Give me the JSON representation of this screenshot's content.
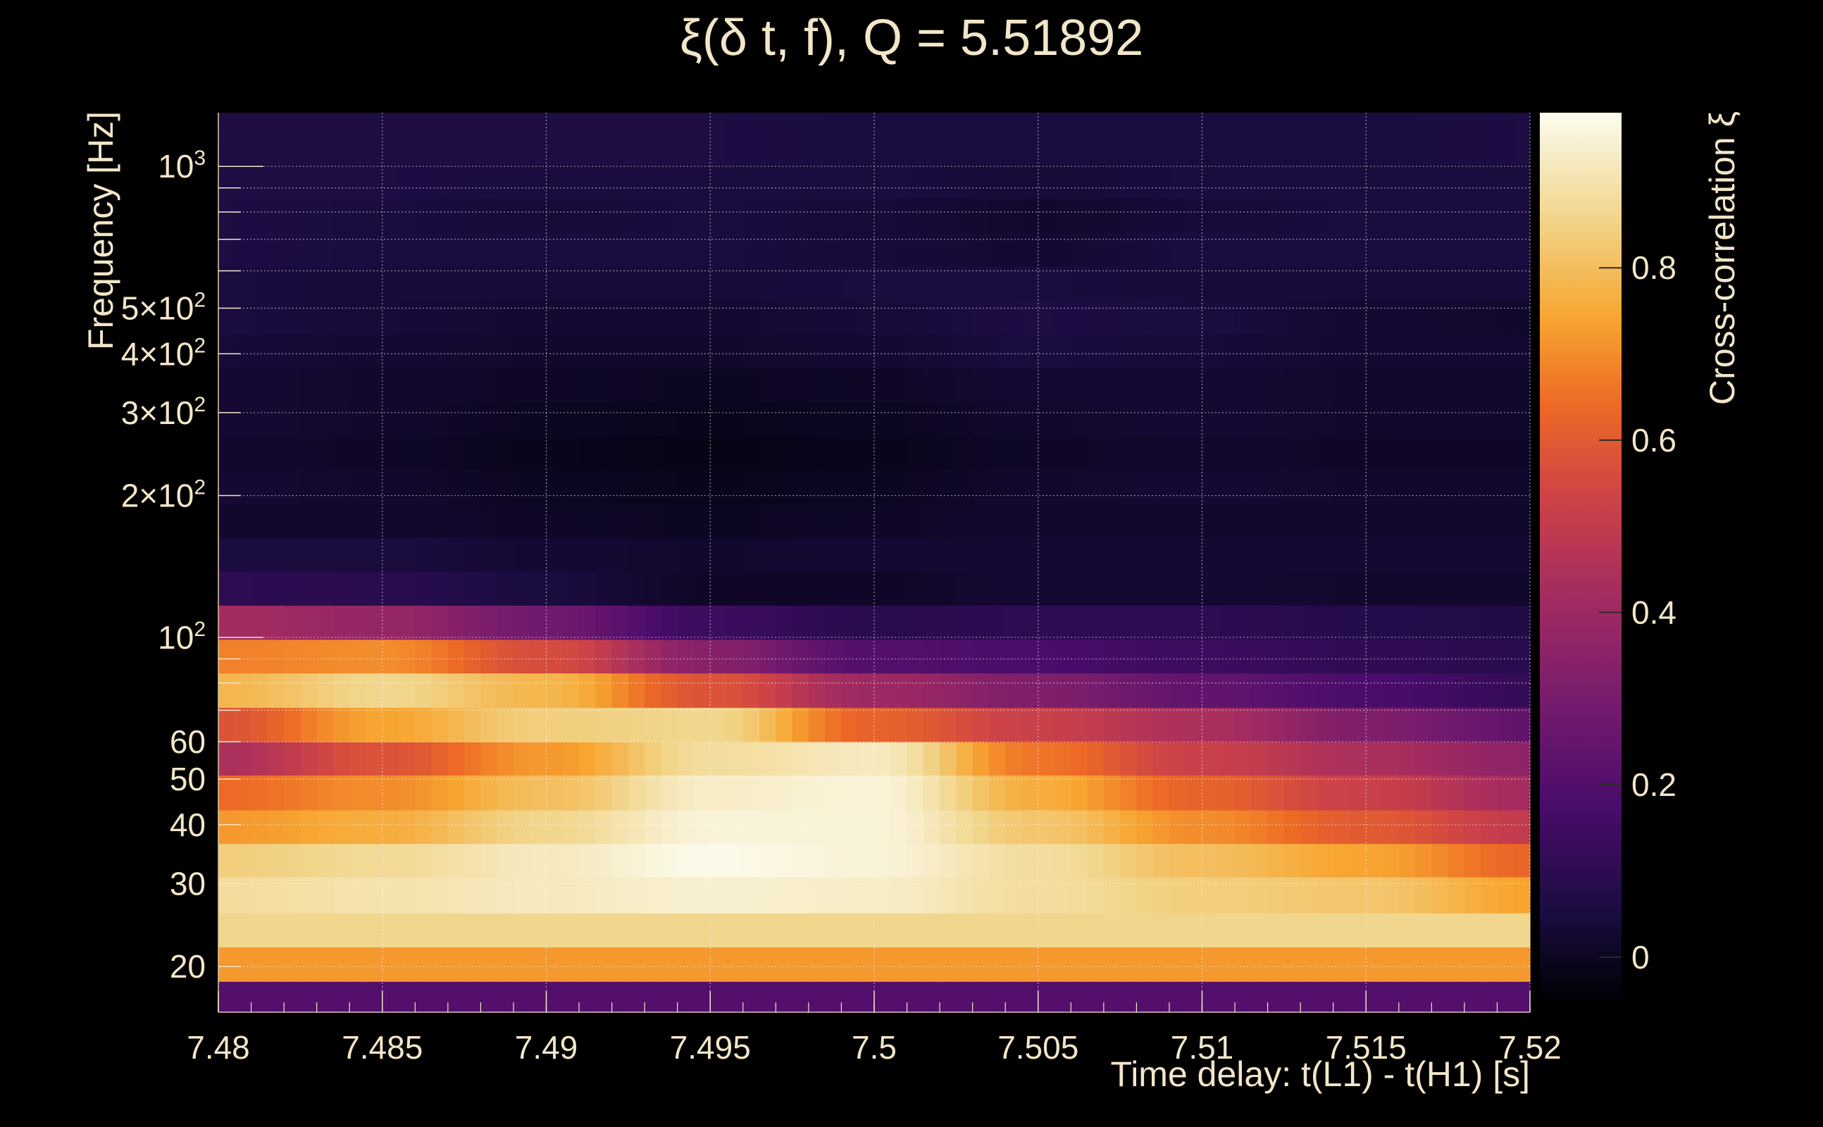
{
  "chart_data": {
    "type": "heatmap",
    "title": "ξ(δ t, f), Q = 5.51892",
    "xlabel": "Time delay: t(L1) - t(H1) [s]",
    "ylabel": "Frequency [Hz]",
    "colorbar_label": "Cross-correlation ξ",
    "xlim": [
      7.48,
      7.52
    ],
    "ylim": [
      16,
      1300
    ],
    "yscale": "log",
    "grid": true,
    "x_ticks": [
      7.48,
      7.485,
      7.49,
      7.495,
      7.5,
      7.505,
      7.51,
      7.515,
      7.52
    ],
    "x_tick_labels": [
      "7.48",
      "7.485",
      "7.49",
      "7.495",
      "7.5",
      "7.505",
      "7.51",
      "7.515",
      "7.52"
    ],
    "y_ticks": [
      {
        "value": 20,
        "label": "20"
      },
      {
        "value": 30,
        "label": "30"
      },
      {
        "value": 40,
        "label": "40"
      },
      {
        "value": 50,
        "label": "50"
      },
      {
        "value": 60,
        "label": "60"
      },
      {
        "value": 100,
        "mantissa": "",
        "exponent": "2"
      },
      {
        "value": 200,
        "mantissa": "2×",
        "exponent": "2"
      },
      {
        "value": 300,
        "mantissa": "3×",
        "exponent": "2"
      },
      {
        "value": 400,
        "mantissa": "4×",
        "exponent": "2"
      },
      {
        "value": 500,
        "mantissa": "5×",
        "exponent": "2"
      },
      {
        "value": 1000,
        "mantissa": "",
        "exponent": "3"
      }
    ],
    "colorbar": {
      "range": [
        -0.05,
        0.98
      ],
      "ticks": [
        0,
        0.2,
        0.4,
        0.6,
        0.8
      ],
      "tick_labels": [
        "0",
        "0.2",
        "0.4",
        "0.6",
        "0.8"
      ]
    },
    "x_centers": [
      7.48,
      7.485,
      7.49,
      7.495,
      7.5,
      7.505,
      7.51,
      7.515,
      7.52
    ],
    "bands": [
      {
        "f_low": 16,
        "f_high": 18.6,
        "values": [
          0.2,
          0.2,
          0.2,
          0.2,
          0.2,
          0.2,
          0.2,
          0.2,
          0.2
        ]
      },
      {
        "f_low": 18.6,
        "f_high": 22.0,
        "values": [
          0.72,
          0.72,
          0.72,
          0.72,
          0.72,
          0.72,
          0.72,
          0.72,
          0.72
        ]
      },
      {
        "f_low": 22.0,
        "f_high": 26.0,
        "values": [
          0.86,
          0.86,
          0.86,
          0.86,
          0.86,
          0.86,
          0.86,
          0.86,
          0.86
        ]
      },
      {
        "f_low": 26.0,
        "f_high": 31.0,
        "values": [
          0.88,
          0.9,
          0.92,
          0.94,
          0.93,
          0.88,
          0.84,
          0.82,
          0.74
        ]
      },
      {
        "f_low": 31.0,
        "f_high": 36.5,
        "values": [
          0.84,
          0.87,
          0.92,
          0.97,
          0.95,
          0.88,
          0.8,
          0.74,
          0.63
        ]
      },
      {
        "f_low": 36.5,
        "f_high": 43.0,
        "values": [
          0.72,
          0.76,
          0.86,
          0.95,
          0.95,
          0.82,
          0.7,
          0.6,
          0.5
        ]
      },
      {
        "f_low": 43.0,
        "f_high": 51.0,
        "values": [
          0.64,
          0.7,
          0.8,
          0.93,
          0.95,
          0.76,
          0.62,
          0.52,
          0.42
        ]
      },
      {
        "f_low": 51.0,
        "f_high": 60.0,
        "values": [
          0.44,
          0.58,
          0.72,
          0.88,
          0.92,
          0.66,
          0.52,
          0.44,
          0.36
        ]
      },
      {
        "f_low": 60.0,
        "f_high": 71.0,
        "values": [
          0.58,
          0.74,
          0.84,
          0.86,
          0.62,
          0.52,
          0.44,
          0.32,
          0.24
        ]
      },
      {
        "f_low": 71.0,
        "f_high": 84.0,
        "values": [
          0.78,
          0.86,
          0.78,
          0.58,
          0.4,
          0.32,
          0.24,
          0.18,
          0.12
        ]
      },
      {
        "f_low": 84.0,
        "f_high": 99.0,
        "values": [
          0.68,
          0.7,
          0.56,
          0.34,
          0.2,
          0.18,
          0.14,
          0.11,
          0.09
        ]
      },
      {
        "f_low": 99.0,
        "f_high": 117.0,
        "values": [
          0.42,
          0.38,
          0.28,
          0.14,
          0.09,
          0.1,
          0.1,
          0.08,
          0.07
        ]
      },
      {
        "f_low": 117.0,
        "f_high": 138.0,
        "values": [
          0.1,
          0.09,
          0.05,
          0.01,
          0.01,
          0.03,
          0.03,
          0.02,
          0.02
        ]
      },
      {
        "f_low": 138.0,
        "f_high": 163.0,
        "values": [
          0.05,
          0.05,
          0.03,
          0.02,
          0.03,
          0.03,
          0.03,
          0.03,
          0.03
        ]
      },
      {
        "f_low": 163.0,
        "f_high": 192.0,
        "values": [
          0.02,
          0.02,
          0.01,
          0.0,
          0.01,
          0.02,
          0.02,
          0.02,
          0.02
        ]
      },
      {
        "f_low": 192.0,
        "f_high": 227.0,
        "values": [
          0.03,
          0.02,
          0.0,
          -0.01,
          0.0,
          0.02,
          0.03,
          0.02,
          0.02
        ]
      },
      {
        "f_low": 227.0,
        "f_high": 268.0,
        "values": [
          0.02,
          0.01,
          -0.01,
          -0.02,
          -0.01,
          0.01,
          0.02,
          0.01,
          0.01
        ]
      },
      {
        "f_low": 268.0,
        "f_high": 316.0,
        "values": [
          0.03,
          0.02,
          0.0,
          -0.01,
          0.0,
          0.02,
          0.03,
          0.02,
          0.02
        ]
      },
      {
        "f_low": 316.0,
        "f_high": 373.0,
        "values": [
          0.03,
          0.02,
          0.01,
          0.0,
          0.01,
          0.03,
          0.03,
          0.02,
          0.02
        ]
      },
      {
        "f_low": 373.0,
        "f_high": 440.0,
        "values": [
          0.04,
          0.03,
          0.02,
          0.02,
          0.03,
          0.05,
          0.04,
          0.03,
          0.03
        ]
      },
      {
        "f_low": 440.0,
        "f_high": 520.0,
        "values": [
          0.05,
          0.04,
          0.03,
          0.03,
          0.04,
          0.06,
          0.05,
          0.03,
          0.02
        ]
      },
      {
        "f_low": 520.0,
        "f_high": 614.0,
        "values": [
          0.05,
          0.04,
          0.04,
          0.04,
          0.05,
          0.05,
          0.04,
          0.04,
          0.04
        ]
      },
      {
        "f_low": 614.0,
        "f_high": 725.0,
        "values": [
          0.06,
          0.05,
          0.05,
          0.05,
          0.04,
          0.03,
          0.05,
          0.05,
          0.05
        ]
      },
      {
        "f_low": 725.0,
        "f_high": 856.0,
        "values": [
          0.06,
          0.05,
          0.04,
          0.05,
          0.04,
          0.02,
          0.04,
          0.05,
          0.05
        ]
      },
      {
        "f_low": 856.0,
        "f_high": 1011.0,
        "values": [
          0.06,
          0.06,
          0.05,
          0.05,
          0.05,
          0.04,
          0.05,
          0.05,
          0.05
        ]
      },
      {
        "f_low": 1011.0,
        "f_high": 1300.0,
        "values": [
          0.06,
          0.06,
          0.06,
          0.06,
          0.05,
          0.05,
          0.05,
          0.05,
          0.06
        ]
      }
    ]
  }
}
